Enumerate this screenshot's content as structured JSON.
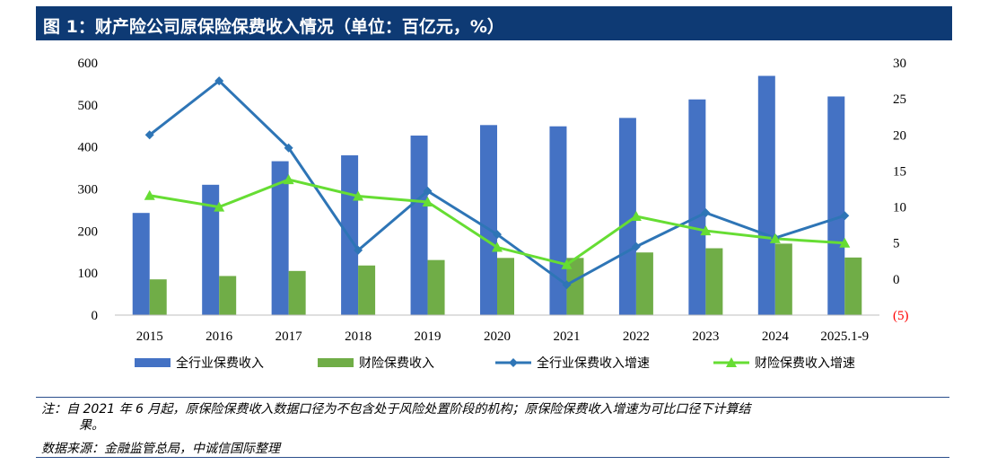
{
  "title": "图 1：财产险公司原保险保费收入情况（单位：百亿元，%）",
  "note": {
    "label": "注：",
    "line1": "自 2021 年 6 月起，原保险保费收入数据口径为不包含处于风险处置阶段的机构；原保险保费收入增速为可比口径下计算结",
    "line2": "果。"
  },
  "source": "数据来源：金融监管总局，中诚信国际整理",
  "chart_data": {
    "type": "bar",
    "categories": [
      "2015",
      "2016",
      "2017",
      "2018",
      "2019",
      "2020",
      "2021",
      "2022",
      "2023",
      "2024",
      "2025.1-9"
    ],
    "left_axis": {
      "ylim": [
        0,
        600
      ],
      "ticks": [
        "0",
        "100",
        "200",
        "300",
        "400",
        "500",
        "600"
      ]
    },
    "right_axis": {
      "ylim": [
        -5,
        30
      ],
      "ticks": [
        "(5)",
        "0",
        "5",
        "10",
        "15",
        "20",
        "25",
        "30"
      ],
      "negative_color": "#ff0000"
    },
    "series": [
      {
        "name": "全行业保费收入",
        "type": "bar",
        "axis": "left",
        "color": "#4472c4",
        "values": [
          243,
          310,
          366,
          380,
          427,
          452,
          449,
          469,
          513,
          569,
          520
        ]
      },
      {
        "name": "财险保费收入",
        "type": "bar",
        "axis": "left",
        "color": "#70ad47",
        "values": [
          85,
          93,
          105,
          118,
          131,
          136,
          136,
          149,
          159,
          170,
          137
        ]
      },
      {
        "name": "全行业保费收入增速",
        "type": "line",
        "axis": "right",
        "color": "#2e75b6",
        "marker": "diamond",
        "values": [
          20.0,
          27.5,
          18.2,
          4.0,
          12.2,
          6.2,
          -0.8,
          4.5,
          9.2,
          5.7,
          8.8
        ]
      },
      {
        "name": "财险保费收入增速",
        "type": "line",
        "axis": "right",
        "color": "#66dd33",
        "marker": "triangle",
        "values": [
          11.6,
          10.0,
          13.8,
          11.5,
          10.7,
          4.4,
          2.0,
          8.7,
          6.7,
          5.6,
          5.0
        ]
      }
    ],
    "grid": false,
    "legend_position": "bottom"
  }
}
